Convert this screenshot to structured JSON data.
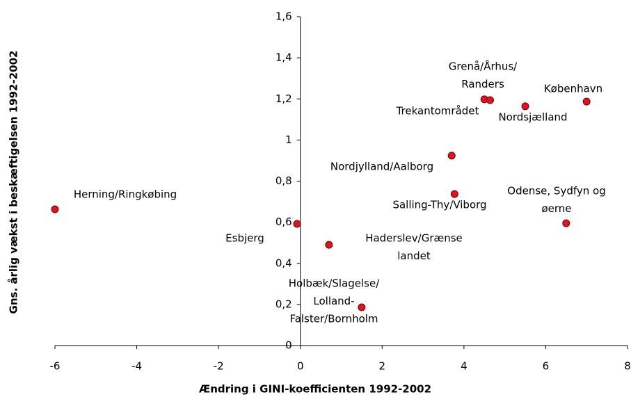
{
  "chart_data": {
    "type": "scatter",
    "xlabel": "Ændring i GINI-koefficienten 1992-2002",
    "ylabel": "Gns. årlig vækst i beskæftigelsen 1992-2002",
    "x": [
      -6.0,
      -0.08,
      0.7,
      1.5,
      3.7,
      3.77,
      4.5,
      4.64,
      5.5,
      7.0,
      6.5
    ],
    "values": [
      0.663,
      0.592,
      0.49,
      0.186,
      0.924,
      0.737,
      1.198,
      1.194,
      1.164,
      1.187,
      0.595
    ],
    "labels": [
      [
        "Herning/Ringkøbing"
      ],
      [
        "Esbjerg"
      ],
      [
        "Haderslev/Grænse",
        "landet"
      ],
      [
        "Holbæk/Slagelse/",
        "Lolland-",
        "Falster/Bornholm"
      ],
      [
        "Nordjylland/Aalborg"
      ],
      [
        "Salling-Thy/Viborg"
      ],
      [
        "Grenå/Århus/",
        "Randers"
      ],
      [
        "Trekantområdet"
      ],
      [
        "Nordsjælland"
      ],
      [
        "København"
      ],
      [
        "Odense, Sydfyn og",
        "øerne"
      ]
    ],
    "color": "#e0141e",
    "xlim": [
      -6,
      8
    ],
    "xticks": [
      -6,
      -4,
      -2,
      0,
      2,
      4,
      6,
      8
    ],
    "ylim": [
      0,
      1.6
    ],
    "yticks": [
      0,
      {
        "value": 0.2,
        "label": "0,2"
      },
      {
        "value": 0.4,
        "label": "0,4"
      },
      {
        "value": 0.6,
        "label": "0,6"
      },
      {
        "value": 0.8,
        "label": "0,8"
      },
      1,
      {
        "value": 1.2,
        "label": "1,2"
      },
      {
        "value": 1.4,
        "label": "1,4"
      },
      {
        "value": 1.6,
        "label": "1,6"
      }
    ]
  }
}
